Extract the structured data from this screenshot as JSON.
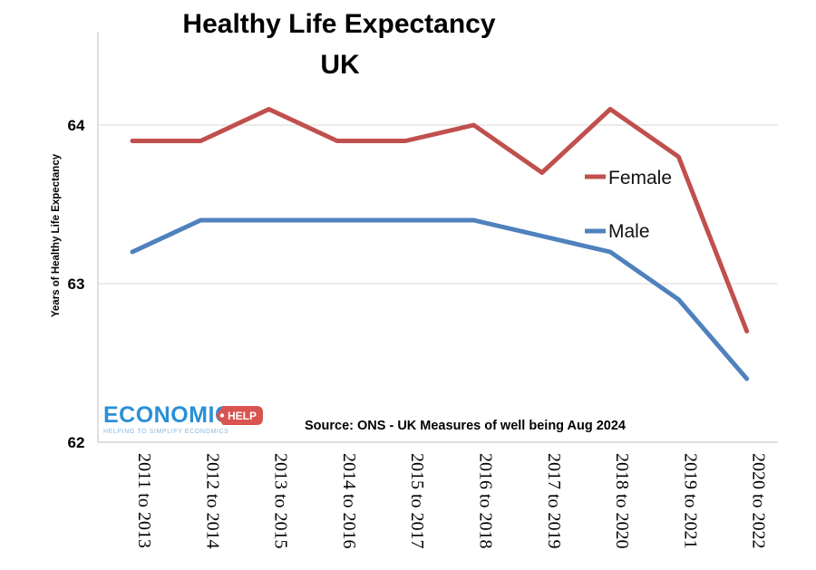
{
  "chart_data": {
    "type": "line",
    "title": [
      "Healthy Life Expectancy",
      "UK"
    ],
    "ylabel": "Years of Healthy Life Expectancy",
    "xlabel": "",
    "ylim": [
      62,
      64.5
    ],
    "yticks": [
      "62",
      "63",
      "64"
    ],
    "grid": "horizontal",
    "categories": [
      "2011 to 2013",
      "2012 to 2014",
      "2013 to 2015",
      "2014 to 2016",
      "2015 to 2017",
      "2016 to 2018",
      "2017 to 2019",
      "2018 to 2020",
      "2019 to 2021",
      "2020 to 2022"
    ],
    "series": [
      {
        "name": "Female",
        "color": "#c0504d",
        "values": [
          63.9,
          63.9,
          64.1,
          63.9,
          63.9,
          64.0,
          63.7,
          64.1,
          63.8,
          62.7
        ]
      },
      {
        "name": "Male",
        "color": "#4f81bd",
        "values": [
          63.2,
          63.4,
          63.4,
          63.4,
          63.4,
          63.4,
          63.3,
          63.2,
          62.9,
          62.4
        ]
      }
    ],
    "source": "Source: ONS - UK Measures of well being Aug 2024"
  },
  "logo": {
    "main": "ECONOMICS",
    "badge": "HELP",
    "tagline": "HELPING TO SIMPLIFY ECONOMICS"
  }
}
